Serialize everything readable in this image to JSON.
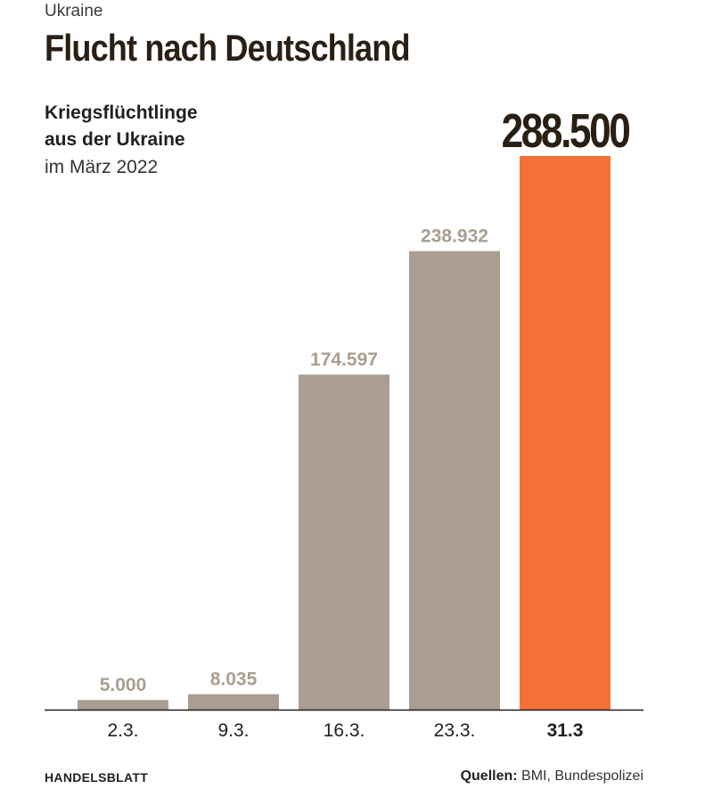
{
  "header": {
    "kicker": "Ukraine",
    "title": "Flucht nach Deutschland",
    "subtitle_line1": "Kriegsflüchtlinge",
    "subtitle_line2": "aus der Ukraine",
    "subtitle_line3": "im März 2022"
  },
  "footer": {
    "brand": "HANDELSBLATT",
    "source_label": "Quellen:",
    "source_text": " BMI, Bundespolizei"
  },
  "colors": {
    "bar_default": "#a99e90",
    "bar_highlight": "#f47036",
    "label_default": "#a99e90",
    "label_highlight": "#2a1f14",
    "axis": "#231f20"
  },
  "chart_data": {
    "type": "bar",
    "categories": [
      "2.3.",
      "9.3.",
      "16.3.",
      "23.3.",
      "31.3"
    ],
    "values": [
      5000,
      8035,
      174597,
      238932,
      288500
    ],
    "value_labels": [
      "5.000",
      "8.035",
      "174.597",
      "238.932",
      "288.500"
    ],
    "highlight_index": 4,
    "title": "Kriegsflüchtlinge aus der Ukraine im März 2022",
    "xlabel": "",
    "ylabel": "",
    "ylim": [
      0,
      288500
    ],
    "grid": false,
    "legend": "none"
  }
}
